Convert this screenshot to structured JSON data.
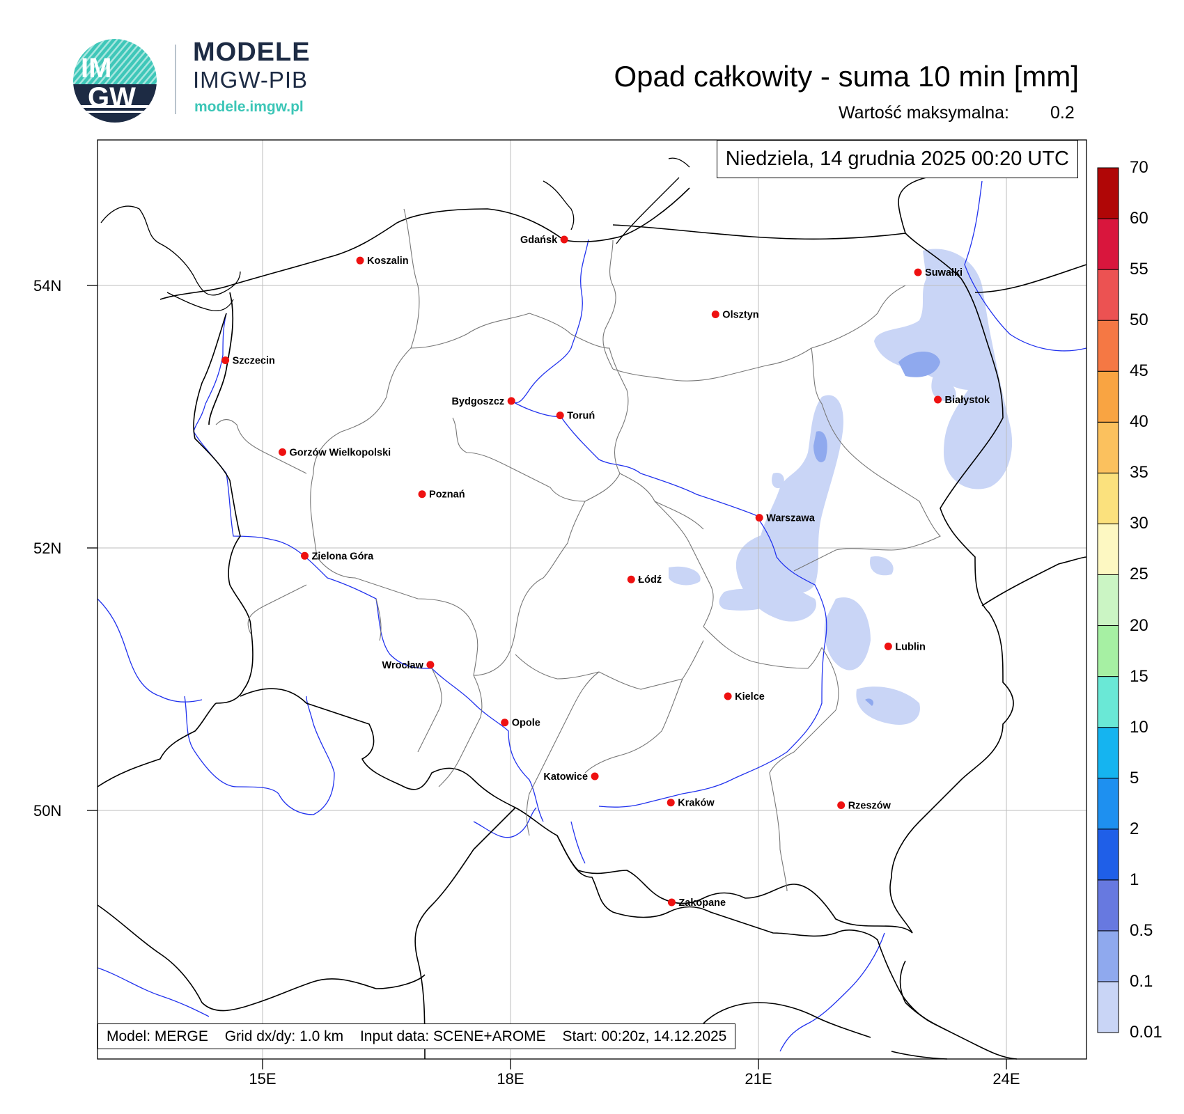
{
  "brand": {
    "logo_text_top": "IM",
    "logo_text_bottom": "GW",
    "title": "MODELE",
    "subtitle": "IMGW-PIB",
    "url": "modele.imgw.pl"
  },
  "map": {
    "title": "Opad całkowity - suma 10 min [mm]",
    "max_label": "Wartość maksymalna:",
    "max_value": "0.2",
    "date": "Niedziela, 14 grudnia 2025 00:20 UTC",
    "lat_labels": [
      "54N",
      "52N",
      "50N"
    ],
    "lon_labels": [
      "15E",
      "18E",
      "21E",
      "24E"
    ],
    "footer": {
      "model": "Model: MERGE",
      "grid": "Grid dx/dy: 1.0 km",
      "input": "Input data: SCENE+AROME",
      "start": "Start: 00:20z, 14.12.2025"
    },
    "cities": [
      {
        "name": "Gdańsk",
        "lon": 18.65,
        "lat": 54.35
      },
      {
        "name": "Koszalin",
        "lon": 16.18,
        "lat": 54.19
      },
      {
        "name": "Suwałki",
        "lon": 22.93,
        "lat": 54.1
      },
      {
        "name": "Olsztyn",
        "lon": 20.48,
        "lat": 53.78
      },
      {
        "name": "Szczecin",
        "lon": 14.55,
        "lat": 53.43
      },
      {
        "name": "Białystok",
        "lon": 23.17,
        "lat": 53.13
      },
      {
        "name": "Bydgoszcz",
        "lon": 18.01,
        "lat": 53.12
      },
      {
        "name": "Toruń",
        "lon": 18.6,
        "lat": 53.01
      },
      {
        "name": "Gorzów Wielkopolski",
        "lon": 15.24,
        "lat": 52.73
      },
      {
        "name": "Poznań",
        "lon": 16.93,
        "lat": 52.41
      },
      {
        "name": "Warszawa",
        "lon": 21.01,
        "lat": 52.23
      },
      {
        "name": "Zielona Góra",
        "lon": 15.51,
        "lat": 51.94
      },
      {
        "name": "Łódź",
        "lon": 19.46,
        "lat": 51.76
      },
      {
        "name": "Lublin",
        "lon": 22.57,
        "lat": 51.25
      },
      {
        "name": "Wrocław",
        "lon": 17.03,
        "lat": 51.11
      },
      {
        "name": "Kielce",
        "lon": 20.63,
        "lat": 50.87
      },
      {
        "name": "Opole",
        "lon": 17.93,
        "lat": 50.67
      },
      {
        "name": "Katowice",
        "lon": 19.02,
        "lat": 50.26
      },
      {
        "name": "Rzeszów",
        "lon": 22.0,
        "lat": 50.04
      },
      {
        "name": "Kraków",
        "lon": 19.94,
        "lat": 50.06
      },
      {
        "name": "Zakopane",
        "lon": 19.95,
        "lat": 49.3
      }
    ]
  },
  "colorbar": {
    "levels": [
      "0.01",
      "0.1",
      "0.5",
      "1",
      "2",
      "5",
      "10",
      "15",
      "20",
      "25",
      "30",
      "35",
      "40",
      "45",
      "50",
      "55",
      "60",
      "70"
    ],
    "colors": [
      "#c9d5f6",
      "#8fa9ee",
      "#6779e0",
      "#1f5fe8",
      "#1e90f0",
      "#15b4f0",
      "#6ae8d6",
      "#a6f0a3",
      "#cbf5c4",
      "#fdf8c2",
      "#fbe17d",
      "#fbc15e",
      "#f9a442",
      "#f57844",
      "#ec5252",
      "#d9163d",
      "#b00606",
      "#7c0404"
    ]
  }
}
